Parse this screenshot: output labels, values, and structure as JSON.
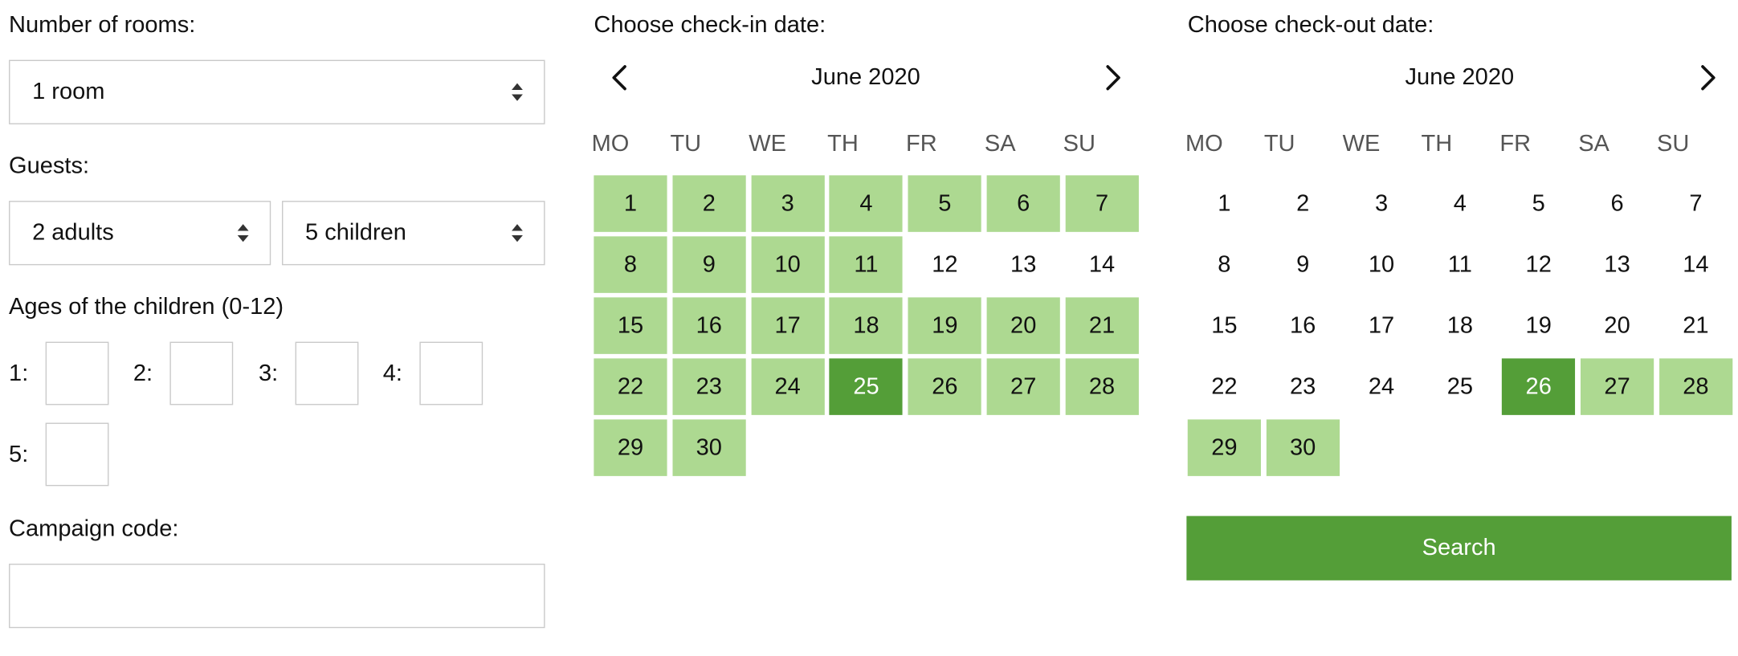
{
  "rooms": {
    "label": "Number of rooms:",
    "value": "1 room"
  },
  "guests": {
    "label": "Guests:",
    "adults": "2 adults",
    "children": "5 children"
  },
  "ages": {
    "label": "Ages of the children (0-12)",
    "inputs": [
      {
        "label": "1:",
        "value": ""
      },
      {
        "label": "2:",
        "value": ""
      },
      {
        "label": "3:",
        "value": ""
      },
      {
        "label": "4:",
        "value": ""
      },
      {
        "label": "5:",
        "value": ""
      }
    ]
  },
  "campaign": {
    "label": "Campaign code:",
    "value": ""
  },
  "checkin": {
    "label": "Choose check-in date:",
    "month": "June 2020",
    "prev_icon": "chevron-left-icon",
    "next_icon": "chevron-right-icon",
    "weekdays": [
      "MO",
      "TU",
      "WE",
      "TH",
      "FR",
      "SA",
      "SU"
    ],
    "days": [
      {
        "d": "1",
        "s": "avail"
      },
      {
        "d": "2",
        "s": "avail"
      },
      {
        "d": "3",
        "s": "avail"
      },
      {
        "d": "4",
        "s": "avail"
      },
      {
        "d": "5",
        "s": "avail"
      },
      {
        "d": "6",
        "s": "avail"
      },
      {
        "d": "7",
        "s": "avail"
      },
      {
        "d": "8",
        "s": "avail"
      },
      {
        "d": "9",
        "s": "avail"
      },
      {
        "d": "10",
        "s": "avail"
      },
      {
        "d": "11",
        "s": "avail"
      },
      {
        "d": "12",
        "s": "none"
      },
      {
        "d": "13",
        "s": "none"
      },
      {
        "d": "14",
        "s": "none"
      },
      {
        "d": "15",
        "s": "avail"
      },
      {
        "d": "16",
        "s": "avail"
      },
      {
        "d": "17",
        "s": "avail"
      },
      {
        "d": "18",
        "s": "avail"
      },
      {
        "d": "19",
        "s": "avail"
      },
      {
        "d": "20",
        "s": "avail"
      },
      {
        "d": "21",
        "s": "avail"
      },
      {
        "d": "22",
        "s": "avail"
      },
      {
        "d": "23",
        "s": "avail"
      },
      {
        "d": "24",
        "s": "avail"
      },
      {
        "d": "25",
        "s": "sel"
      },
      {
        "d": "26",
        "s": "avail"
      },
      {
        "d": "27",
        "s": "avail"
      },
      {
        "d": "28",
        "s": "avail"
      },
      {
        "d": "29",
        "s": "avail"
      },
      {
        "d": "30",
        "s": "avail"
      }
    ]
  },
  "checkout": {
    "label": "Choose check-out date:",
    "month": "June 2020",
    "next_icon": "chevron-right-icon",
    "weekdays": [
      "MO",
      "TU",
      "WE",
      "TH",
      "FR",
      "SA",
      "SU"
    ],
    "days": [
      {
        "d": "1",
        "s": "none"
      },
      {
        "d": "2",
        "s": "none"
      },
      {
        "d": "3",
        "s": "none"
      },
      {
        "d": "4",
        "s": "none"
      },
      {
        "d": "5",
        "s": "none"
      },
      {
        "d": "6",
        "s": "none"
      },
      {
        "d": "7",
        "s": "none"
      },
      {
        "d": "8",
        "s": "none"
      },
      {
        "d": "9",
        "s": "none"
      },
      {
        "d": "10",
        "s": "none"
      },
      {
        "d": "11",
        "s": "none"
      },
      {
        "d": "12",
        "s": "none"
      },
      {
        "d": "13",
        "s": "none"
      },
      {
        "d": "14",
        "s": "none"
      },
      {
        "d": "15",
        "s": "none"
      },
      {
        "d": "16",
        "s": "none"
      },
      {
        "d": "17",
        "s": "none"
      },
      {
        "d": "18",
        "s": "none"
      },
      {
        "d": "19",
        "s": "none"
      },
      {
        "d": "20",
        "s": "none"
      },
      {
        "d": "21",
        "s": "none"
      },
      {
        "d": "22",
        "s": "none"
      },
      {
        "d": "23",
        "s": "none"
      },
      {
        "d": "24",
        "s": "none"
      },
      {
        "d": "25",
        "s": "none"
      },
      {
        "d": "26",
        "s": "sel"
      },
      {
        "d": "27",
        "s": "avail"
      },
      {
        "d": "28",
        "s": "avail"
      },
      {
        "d": "29",
        "s": "avail"
      },
      {
        "d": "30",
        "s": "avail"
      }
    ]
  },
  "search": {
    "label": "Search"
  },
  "colors": {
    "available": "#add991",
    "selected": "#549e38",
    "button": "#549e38"
  }
}
